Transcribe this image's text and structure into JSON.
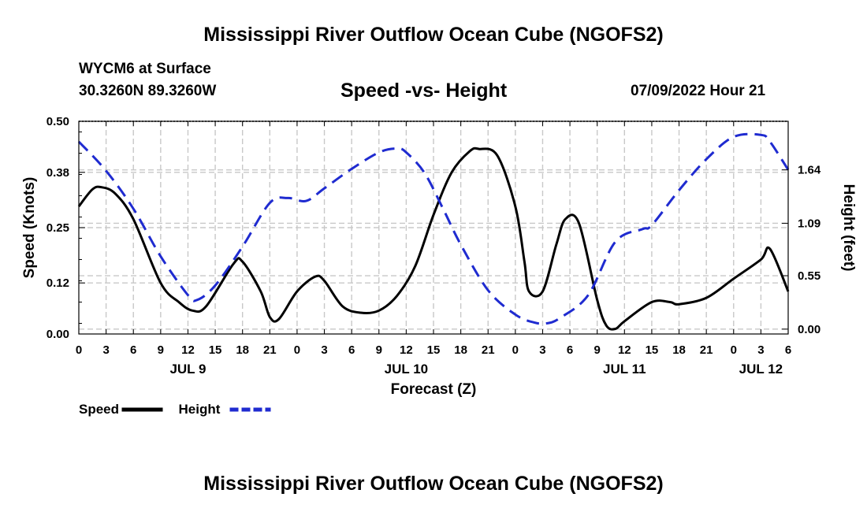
{
  "page": {
    "title": "Mississippi River Outflow Ocean Cube (NGOFS2)",
    "station": "WYCM6 at Surface",
    "coordinates": "30.3260N  89.3260W",
    "subtitle": "Speed -vs- Height",
    "datetime": "07/09/2022 Hour 21",
    "footer_title": "Mississippi River Outflow Ocean Cube (NGOFS2)"
  },
  "chart_data": {
    "type": "line",
    "title": "Speed -vs- Height",
    "xlabel": "Forecast (Z)",
    "ylabel": "Speed (Knots)",
    "y2label": "Height (feet)",
    "x_unit": "hours since JUL 9 00Z",
    "xlim": [
      0,
      78
    ],
    "ylim": [
      0,
      0.5
    ],
    "y2lim": [
      -0.05,
      2.14
    ],
    "grid": true,
    "x_ticks": [
      0,
      3,
      6,
      9,
      12,
      15,
      18,
      21,
      24,
      27,
      30,
      33,
      36,
      39,
      42,
      45,
      48,
      51,
      54,
      57,
      60,
      63,
      66,
      69,
      72,
      75,
      78
    ],
    "x_tick_labels": [
      "0",
      "3",
      "6",
      "9",
      "12",
      "15",
      "18",
      "21",
      "0",
      "3",
      "6",
      "9",
      "12",
      "15",
      "18",
      "21",
      "0",
      "3",
      "6",
      "9",
      "12",
      "15",
      "18",
      "21",
      "0",
      "3",
      "6"
    ],
    "date_labels": [
      {
        "x": 12,
        "label": "JUL 9"
      },
      {
        "x": 36,
        "label": "JUL 10"
      },
      {
        "x": 60,
        "label": "JUL 11"
      },
      {
        "x": 75,
        "label": "JUL 12"
      }
    ],
    "y_ticks": [
      0.0,
      0.12,
      0.25,
      0.38,
      0.5
    ],
    "y_tick_labels": [
      "0.00",
      "0.12",
      "0.25",
      "0.38",
      "0.50"
    ],
    "y2_ticks": [
      0.0,
      0.55,
      1.09,
      1.64
    ],
    "y2_tick_labels": [
      "0.00",
      "0.55",
      "1.09",
      "1.64"
    ],
    "legend": "bottom-left",
    "series": [
      {
        "name": "Speed",
        "axis": "left",
        "color": "#000000",
        "style": "solid",
        "x": [
          0,
          1.5,
          2.5,
          4,
          6,
          9,
          11,
          12.5,
          14,
          17,
          18,
          20,
          21,
          22,
          24,
          26,
          27,
          29,
          31,
          33,
          35,
          37,
          39,
          41,
          43,
          44,
          46,
          48,
          49,
          49.5,
          51,
          52.5,
          53.5,
          55,
          57,
          58,
          59,
          60,
          63,
          65,
          66,
          69,
          72,
          75,
          76,
          78
        ],
        "values": [
          0.3,
          0.34,
          0.345,
          0.33,
          0.27,
          0.12,
          0.075,
          0.055,
          0.065,
          0.165,
          0.17,
          0.1,
          0.04,
          0.035,
          0.1,
          0.135,
          0.125,
          0.065,
          0.05,
          0.055,
          0.09,
          0.16,
          0.28,
          0.38,
          0.43,
          0.435,
          0.42,
          0.3,
          0.17,
          0.1,
          0.1,
          0.21,
          0.27,
          0.26,
          0.08,
          0.02,
          0.012,
          0.03,
          0.075,
          0.075,
          0.07,
          0.085,
          0.13,
          0.175,
          0.2,
          0.1
        ]
      },
      {
        "name": "Height",
        "axis": "right",
        "color": "#1f2bd0",
        "style": "dashed",
        "x": [
          0,
          3,
          6,
          9,
          12,
          13,
          15,
          18,
          21,
          23,
          25,
          27,
          30,
          33,
          35,
          36,
          38,
          40,
          42,
          45,
          48,
          50,
          51.5,
          53,
          56,
          59,
          62,
          63,
          66,
          69,
          72,
          75,
          76,
          78
        ],
        "values": [
          1.93,
          1.63,
          1.24,
          0.75,
          0.35,
          0.3,
          0.45,
          0.85,
          1.3,
          1.35,
          1.32,
          1.45,
          1.65,
          1.82,
          1.86,
          1.82,
          1.61,
          1.25,
          0.87,
          0.4,
          0.15,
          0.07,
          0.06,
          0.12,
          0.35,
          0.9,
          1.03,
          1.07,
          1.43,
          1.75,
          1.98,
          2.0,
          1.93,
          1.64
        ]
      }
    ]
  }
}
